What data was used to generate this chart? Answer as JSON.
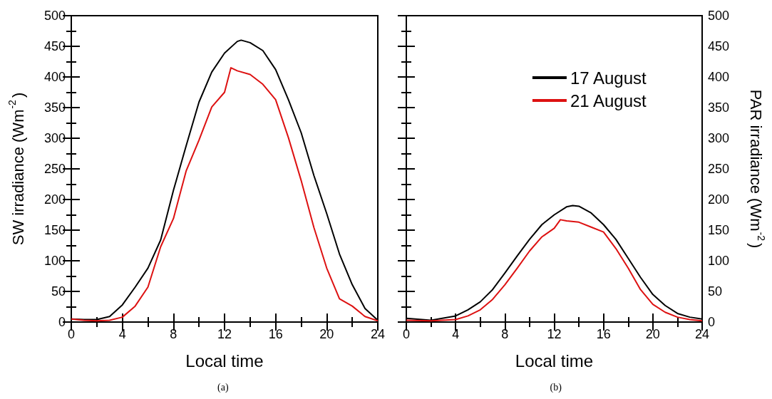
{
  "chart_data": [
    {
      "type": "line",
      "xlabel": "Local time",
      "ylabel": "SW irradiance (Wm$^{-2}$)",
      "xlim": [
        0,
        24
      ],
      "xticks": [
        0,
        4,
        8,
        12,
        16,
        20,
        24
      ],
      "ylim": [
        0,
        500
      ],
      "yticks": [
        0,
        50,
        100,
        150,
        200,
        250,
        300,
        350,
        400,
        450,
        500
      ],
      "grid": false,
      "legend": false,
      "annotations": [
        "(a)"
      ],
      "series": [
        {
          "color": "#000000",
          "x": [
            0,
            1,
            2,
            3,
            4,
            5,
            6,
            7,
            8,
            9,
            10,
            11,
            12,
            13,
            13.3,
            14,
            15,
            16,
            17,
            18,
            19,
            20,
            21,
            22,
            23,
            24
          ],
          "values": [
            5,
            4,
            4,
            9,
            28,
            57,
            88,
            134,
            215,
            288,
            359,
            408,
            439,
            458,
            460,
            456,
            443,
            412,
            363,
            309,
            239,
            177,
            111,
            61,
            22,
            3
          ]
        },
        {
          "color": "#dd1111",
          "x": [
            0,
            1,
            2,
            3,
            4,
            5,
            6,
            7,
            8,
            9,
            10,
            11,
            12,
            12.5,
            13,
            14,
            15,
            16,
            17,
            18,
            19,
            20,
            21,
            22,
            23,
            24
          ],
          "values": [
            5,
            3,
            2,
            3,
            8,
            26,
            57,
            123,
            169,
            247,
            297,
            351,
            375,
            415,
            410,
            404,
            388,
            363,
            301,
            231,
            154,
            88,
            38,
            26,
            9,
            2
          ]
        }
      ]
    },
    {
      "type": "line",
      "xlabel": "Local time",
      "ylabel": "PAR irradiance (Wm$^{-2}$)",
      "xlim": [
        0,
        24
      ],
      "xticks": [
        0,
        4,
        8,
        12,
        16,
        20,
        24
      ],
      "ylim": [
        0,
        500
      ],
      "yticks": [
        0,
        50,
        100,
        150,
        200,
        250,
        300,
        350,
        400,
        450,
        500
      ],
      "grid": false,
      "legend": "top right",
      "annotations": [
        "(b)"
      ],
      "series": [
        {
          "name": "17 August",
          "color": "#000000",
          "x": [
            0,
            2,
            4,
            5,
            6,
            7,
            8,
            9,
            10,
            11,
            12,
            13,
            13.5,
            14,
            15,
            16,
            17,
            18,
            19,
            20,
            21,
            22,
            23,
            24
          ],
          "values": [
            6,
            3,
            10,
            20,
            33,
            53,
            80,
            108,
            135,
            159,
            175,
            188,
            190,
            189,
            178,
            159,
            135,
            104,
            73,
            45,
            27,
            14,
            8,
            5
          ]
        },
        {
          "name": "21 August",
          "color": "#dd1111",
          "x": [
            0,
            2,
            4,
            5,
            6,
            7,
            8,
            9,
            10,
            11,
            12,
            12.5,
            13,
            14,
            15,
            16,
            17,
            18,
            19,
            20,
            21,
            22,
            23,
            24
          ],
          "values": [
            3,
            2,
            4,
            10,
            20,
            37,
            61,
            88,
            116,
            139,
            153,
            167,
            165,
            163,
            155,
            147,
            120,
            88,
            53,
            29,
            16,
            8,
            4,
            2
          ]
        }
      ]
    }
  ]
}
